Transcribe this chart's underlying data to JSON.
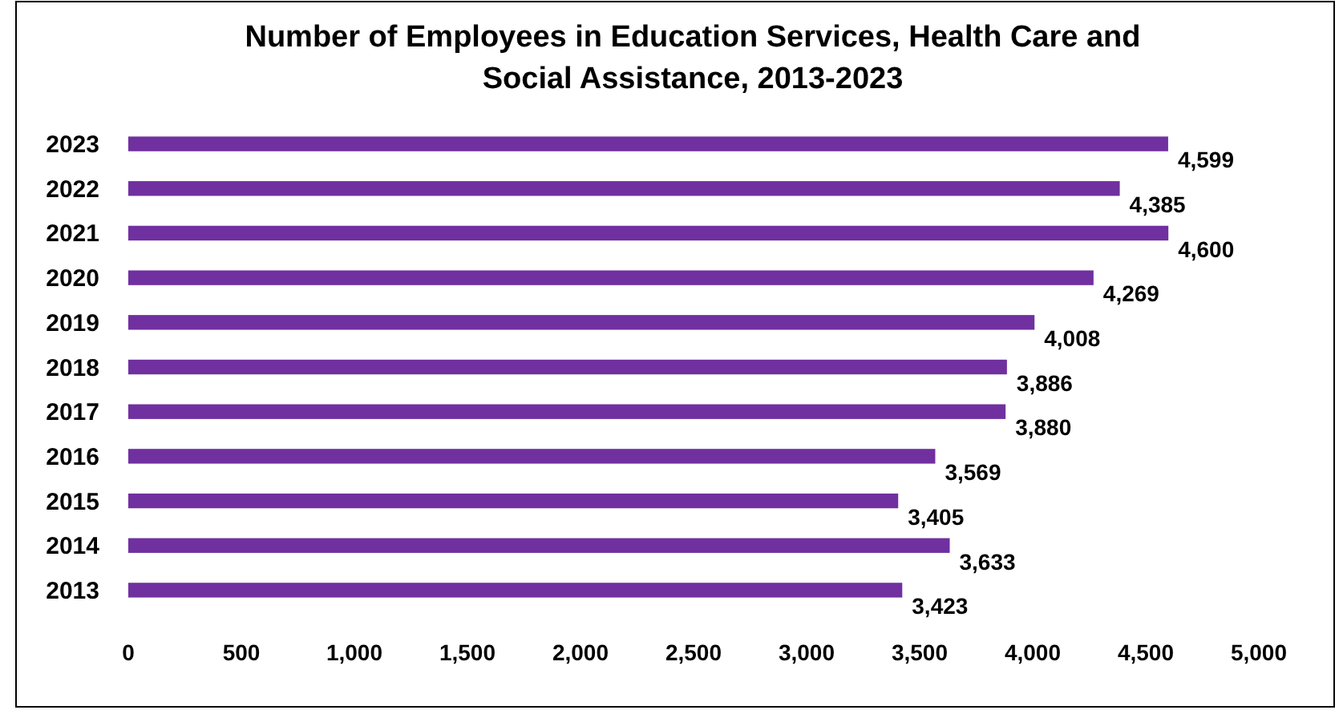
{
  "chart_data": {
    "type": "bar",
    "orientation": "horizontal",
    "title": "Number of Employees in Education Services, Health Care and Social Assistance, 2013-2023",
    "categories": [
      "2023",
      "2022",
      "2021",
      "2020",
      "2019",
      "2018",
      "2017",
      "2016",
      "2015",
      "2014",
      "2013"
    ],
    "values": [
      4599,
      4385,
      4600,
      4269,
      4008,
      3886,
      3880,
      3569,
      3405,
      3633,
      3423
    ],
    "value_labels": [
      "4,599",
      "4,385",
      "4,600",
      "4,269",
      "4,008",
      "3,886",
      "3,880",
      "3,569",
      "3,405",
      "3,633",
      "3,423"
    ],
    "color": "#7030a0",
    "xlim": [
      0,
      5000
    ],
    "xticks": [
      {
        "value": 0,
        "label": "0"
      },
      {
        "value": 500,
        "label": "500"
      },
      {
        "value": 1000,
        "label": "1,000"
      },
      {
        "value": 1500,
        "label": "1,500"
      },
      {
        "value": 2000,
        "label": "2,000"
      },
      {
        "value": 2500,
        "label": "2,500"
      },
      {
        "value": 3000,
        "label": "3,000"
      },
      {
        "value": 3500,
        "label": "3,500"
      },
      {
        "value": 4000,
        "label": "4,000"
      },
      {
        "value": 4500,
        "label": "4,500"
      },
      {
        "value": 5000,
        "label": "5,000"
      }
    ],
    "grid": false
  }
}
